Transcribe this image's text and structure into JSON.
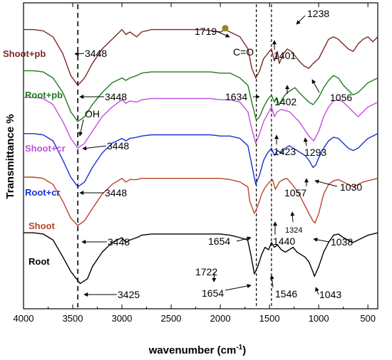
{
  "chart_data": {
    "type": "line",
    "xlabel": "wavenumber (cm",
    "xlabel_sup": "-1",
    "xlabel_close": ")",
    "ylabel": "Transmittance %",
    "xlim": [
      4000,
      400
    ],
    "x_reversed": true,
    "y_ticks_shown": false,
    "x_ticks": [
      4000,
      3500,
      3000,
      2500,
      2000,
      1500,
      1000,
      500
    ],
    "x_tick_labels": [
      "4000",
      "3500",
      "3000",
      "2500",
      "2000",
      "1500",
      "1000",
      "500"
    ],
    "reference_lines": [
      {
        "x": 3448,
        "style": "dashed"
      },
      {
        "x": 1634,
        "style": "dashed"
      },
      {
        "x": 1480,
        "style": "dashed"
      }
    ],
    "series": [
      {
        "name": "Shoot+pb",
        "color": "#7a2a22",
        "x": [
          4000,
          3900,
          3800,
          3700,
          3600,
          3520,
          3448,
          3380,
          3300,
          3200,
          3100,
          3000,
          2960,
          2920,
          2850,
          2800,
          2700,
          2600,
          2500,
          2400,
          2300,
          2200,
          2100,
          2000,
          1950,
          1900,
          1800,
          1719,
          1680,
          1640,
          1600,
          1560,
          1520,
          1480,
          1450,
          1420,
          1401,
          1360,
          1320,
          1280,
          1238,
          1200,
          1150,
          1100,
          1056,
          1000,
          950,
          900,
          850,
          800,
          750,
          700,
          650,
          600,
          550,
          500,
          450,
          400
        ],
        "y": [
          0.96,
          0.96,
          0.955,
          0.93,
          0.86,
          0.77,
          0.73,
          0.76,
          0.82,
          0.88,
          0.92,
          0.96,
          0.94,
          0.95,
          0.93,
          0.95,
          0.96,
          0.96,
          0.96,
          0.96,
          0.96,
          0.96,
          0.955,
          0.95,
          0.96,
          0.95,
          0.93,
          0.88,
          0.8,
          0.76,
          0.79,
          0.84,
          0.86,
          0.88,
          0.83,
          0.87,
          0.82,
          0.86,
          0.88,
          0.87,
          0.85,
          0.83,
          0.81,
          0.8,
          0.82,
          0.84,
          0.88,
          0.92,
          0.93,
          0.92,
          0.9,
          0.88,
          0.87,
          0.9,
          0.92,
          0.93,
          0.91,
          0.93
        ]
      },
      {
        "name": "Root+pb",
        "color": "#1f7d1f",
        "x": [
          4000,
          3900,
          3800,
          3700,
          3600,
          3520,
          3448,
          3380,
          3300,
          3200,
          3100,
          3000,
          2960,
          2920,
          2850,
          2800,
          2700,
          2600,
          2500,
          2400,
          2300,
          2200,
          2100,
          2000,
          1900,
          1800,
          1720,
          1680,
          1634,
          1600,
          1560,
          1520,
          1480,
          1450,
          1430,
          1402,
          1360,
          1320,
          1280,
          1240,
          1200,
          1150,
          1100,
          1056,
          1000,
          950,
          900,
          850,
          800,
          750,
          700,
          650,
          600,
          550,
          500,
          450,
          400
        ],
        "y": [
          0.79,
          0.79,
          0.785,
          0.76,
          0.7,
          0.62,
          0.58,
          0.6,
          0.65,
          0.7,
          0.74,
          0.76,
          0.75,
          0.76,
          0.77,
          0.78,
          0.785,
          0.785,
          0.785,
          0.785,
          0.785,
          0.785,
          0.785,
          0.78,
          0.78,
          0.76,
          0.73,
          0.66,
          0.585,
          0.6,
          0.64,
          0.67,
          0.69,
          0.66,
          0.68,
          0.65,
          0.68,
          0.7,
          0.71,
          0.72,
          0.7,
          0.68,
          0.66,
          0.65,
          0.68,
          0.72,
          0.75,
          0.77,
          0.76,
          0.73,
          0.71,
          0.69,
          0.7,
          0.72,
          0.74,
          0.75,
          0.76
        ]
      },
      {
        "name": "Shoot+cr",
        "color": "#c050e0",
        "x": [
          4000,
          3900,
          3800,
          3700,
          3600,
          3520,
          3448,
          3380,
          3300,
          3200,
          3100,
          3000,
          2960,
          2920,
          2850,
          2800,
          2700,
          2600,
          2500,
          2400,
          2300,
          2200,
          2100,
          2000,
          1900,
          1800,
          1720,
          1680,
          1640,
          1600,
          1560,
          1520,
          1480,
          1450,
          1423,
          1380,
          1340,
          1293,
          1250,
          1200,
          1150,
          1100,
          1050,
          1000,
          950,
          900,
          850,
          800,
          750,
          700,
          650,
          600,
          550,
          500,
          450,
          400
        ],
        "y": [
          0.68,
          0.68,
          0.675,
          0.65,
          0.58,
          0.51,
          0.47,
          0.49,
          0.54,
          0.6,
          0.64,
          0.67,
          0.655,
          0.665,
          0.66,
          0.67,
          0.675,
          0.675,
          0.675,
          0.675,
          0.675,
          0.675,
          0.675,
          0.67,
          0.67,
          0.66,
          0.62,
          0.55,
          0.49,
          0.53,
          0.58,
          0.61,
          0.64,
          0.6,
          0.62,
          0.63,
          0.625,
          0.62,
          0.6,
          0.58,
          0.55,
          0.52,
          0.5,
          0.54,
          0.6,
          0.64,
          0.665,
          0.67,
          0.66,
          0.64,
          0.62,
          0.6,
          0.62,
          0.64,
          0.65,
          0.66
        ]
      },
      {
        "name": "Root+cr",
        "color": "#1a2fd6",
        "x": [
          4000,
          3900,
          3800,
          3700,
          3600,
          3520,
          3448,
          3380,
          3300,
          3200,
          3100,
          3000,
          2960,
          2920,
          2850,
          2800,
          2700,
          2600,
          2500,
          2400,
          2300,
          2200,
          2100,
          2000,
          1900,
          1800,
          1720,
          1680,
          1640,
          1600,
          1560,
          1520,
          1480,
          1450,
          1420,
          1380,
          1340,
          1300,
          1260,
          1220,
          1180,
          1140,
          1100,
          1057,
          1030,
          1000,
          950,
          900,
          850,
          800,
          750,
          700,
          650,
          600,
          550,
          500,
          450,
          400
        ],
        "y": [
          0.53,
          0.53,
          0.525,
          0.5,
          0.42,
          0.35,
          0.31,
          0.33,
          0.39,
          0.45,
          0.49,
          0.51,
          0.5,
          0.51,
          0.515,
          0.52,
          0.525,
          0.525,
          0.525,
          0.525,
          0.525,
          0.525,
          0.525,
          0.52,
          0.52,
          0.51,
          0.48,
          0.4,
          0.32,
          0.36,
          0.42,
          0.45,
          0.47,
          0.44,
          0.46,
          0.45,
          0.47,
          0.48,
          0.47,
          0.46,
          0.45,
          0.44,
          0.42,
          0.39,
          0.4,
          0.43,
          0.47,
          0.5,
          0.515,
          0.51,
          0.49,
          0.47,
          0.46,
          0.47,
          0.49,
          0.51,
          0.52,
          0.53
        ]
      },
      {
        "name": "Shoot",
        "color": "#b8452a",
        "x": [
          4000,
          3900,
          3800,
          3700,
          3600,
          3520,
          3448,
          3380,
          3300,
          3200,
          3100,
          3000,
          2960,
          2920,
          2850,
          2800,
          2700,
          2600,
          2500,
          2400,
          2300,
          2200,
          2100,
          2000,
          1900,
          1800,
          1720,
          1700,
          1654,
          1620,
          1580,
          1540,
          1500,
          1470,
          1440,
          1400,
          1360,
          1324,
          1290,
          1250,
          1200,
          1150,
          1100,
          1060,
          1038,
          1000,
          950,
          900,
          850,
          800,
          750,
          700,
          650,
          600,
          550,
          500,
          450,
          400
        ],
        "y": [
          0.35,
          0.35,
          0.345,
          0.32,
          0.25,
          0.18,
          0.15,
          0.17,
          0.22,
          0.28,
          0.32,
          0.345,
          0.33,
          0.34,
          0.34,
          0.345,
          0.345,
          0.345,
          0.345,
          0.345,
          0.345,
          0.345,
          0.345,
          0.345,
          0.34,
          0.33,
          0.31,
          0.25,
          0.2,
          0.23,
          0.28,
          0.31,
          0.33,
          0.34,
          0.3,
          0.33,
          0.34,
          0.345,
          0.33,
          0.31,
          0.28,
          0.24,
          0.2,
          0.17,
          0.16,
          0.2,
          0.28,
          0.32,
          0.335,
          0.34,
          0.33,
          0.32,
          0.31,
          0.32,
          0.33,
          0.335,
          0.34,
          0.345
        ]
      },
      {
        "name": "Root",
        "color": "#000000",
        "x": [
          4000,
          3900,
          3800,
          3700,
          3600,
          3520,
          3425,
          3350,
          3300,
          3200,
          3100,
          3000,
          2960,
          2920,
          2850,
          2800,
          2700,
          2600,
          2500,
          2400,
          2300,
          2200,
          2100,
          2000,
          1900,
          1800,
          1722,
          1690,
          1654,
          1620,
          1580,
          1546,
          1510,
          1480,
          1450,
          1420,
          1380,
          1340,
          1300,
          1260,
          1220,
          1180,
          1140,
          1100,
          1060,
          1043,
          1000,
          950,
          900,
          850,
          800,
          750,
          700,
          650,
          600,
          550,
          500,
          450,
          400
        ],
        "y": [
          0.12,
          0.12,
          0.115,
          0.09,
          0.02,
          -0.04,
          -0.09,
          -0.07,
          -0.02,
          0.04,
          0.08,
          0.1,
          0.08,
          0.09,
          0.1,
          0.11,
          0.115,
          0.115,
          0.115,
          0.115,
          0.115,
          0.115,
          0.115,
          0.115,
          0.11,
          0.1,
          0.09,
          0.03,
          -0.05,
          -0.02,
          0.03,
          0.06,
          0.05,
          0.08,
          0.06,
          0.07,
          0.05,
          0.04,
          0.05,
          0.06,
          0.04,
          0.03,
          0.02,
          0.0,
          -0.04,
          -0.06,
          -0.02,
          0.04,
          0.08,
          0.11,
          0.115,
          0.1,
          0.09,
          0.08,
          0.09,
          0.1,
          0.11,
          0.115,
          0.12
        ]
      }
    ],
    "annotations": [
      {
        "text": "3448",
        "x": 3448,
        "series": "Shoot+pb"
      },
      {
        "text": "1719",
        "x": 1719,
        "series": "Shoot+pb"
      },
      {
        "text": "1238",
        "x": 1238,
        "series": "Shoot+pb"
      },
      {
        "text": "C=O",
        "x": 1634
      },
      {
        "text": "1401",
        "x": 1401,
        "series": "Shoot+pb"
      },
      {
        "text": "3448",
        "x": 3448,
        "series": "Root+pb"
      },
      {
        "text": "1634",
        "x": 1634,
        "series": "Root+pb"
      },
      {
        "text": "1402",
        "x": 1402,
        "series": "Root+pb"
      },
      {
        "text": "1056",
        "x": 1056,
        "series": "Root+pb"
      },
      {
        "text": "OH",
        "x": 3448
      },
      {
        "text": "3448",
        "x": 3448,
        "series": "Shoot+cr"
      },
      {
        "text": "1423",
        "x": 1423,
        "series": "Shoot+cr"
      },
      {
        "text": "1293",
        "x": 1293,
        "series": "Shoot+cr"
      },
      {
        "text": "3448",
        "x": 3448,
        "series": "Root+cr"
      },
      {
        "text": "1057",
        "x": 1057,
        "series": "Root+cr"
      },
      {
        "text": "1030",
        "x": 1030,
        "series": "Root+cr"
      },
      {
        "text": "3448",
        "x": 3448,
        "series": "Shoot"
      },
      {
        "text": "1654",
        "x": 1654,
        "series": "Shoot"
      },
      {
        "text": "1324",
        "x": 1324,
        "series": "Shoot"
      },
      {
        "text": "1440",
        "x": 1440,
        "series": "Shoot"
      },
      {
        "text": "1038",
        "x": 1038,
        "series": "Shoot"
      },
      {
        "text": "1722",
        "x": 1722,
        "series": "Root"
      },
      {
        "text": "1654",
        "x": 1654,
        "series": "Root"
      },
      {
        "text": "1546",
        "x": 1546,
        "series": "Root"
      },
      {
        "text": "3425",
        "x": 3425,
        "series": "Root"
      },
      {
        "text": "1043",
        "x": 1043,
        "series": "Root"
      }
    ],
    "marker": {
      "x": 1950,
      "color": "#8a8a2a",
      "series": "Shoot+pb"
    }
  }
}
